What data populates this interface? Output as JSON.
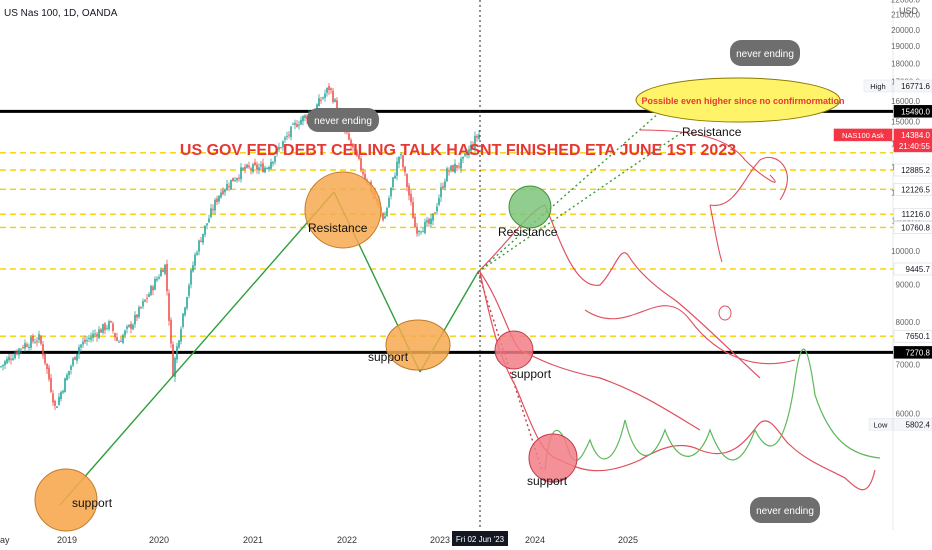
{
  "header": {
    "symbol": "US Nas 100, 1D, OANDA",
    "currency": "USD"
  },
  "chart_data": {
    "type": "line",
    "title": "US GOV FED DEBT CEILING TALK HASNT FINISHED ETA JUNE 1ST 2023",
    "y_axis": {
      "ticks": [
        "22000.0",
        "21000.0",
        "20000.0",
        "19000.0",
        "18000.0",
        "17000.0",
        "16000.0",
        "15000.0",
        "14000.0",
        "13000.0",
        "12000.0",
        "11000.0",
        "10000.0",
        "9000.0",
        "8000.0",
        "7000.0",
        "6000.0"
      ],
      "scale": "log"
    },
    "x_axis": {
      "ticks": [
        "ay",
        "2019",
        "2020",
        "2021",
        "2022",
        "2023",
        "2024",
        "2025"
      ],
      "cursor_label": "Fri 02 Jun '23"
    },
    "price_labels": [
      {
        "label": "High",
        "value": "16771.6",
        "kind": "muted"
      },
      {
        "label": "",
        "value": "15490.0",
        "kind": "black"
      },
      {
        "label": "NAS100 Ask",
        "value": "14384.0",
        "kind": "red"
      },
      {
        "label": "",
        "value": "21:40:55",
        "kind": "red-sub"
      },
      {
        "label": "",
        "value": "12885.2",
        "kind": "plain"
      },
      {
        "label": "",
        "value": "12126.5",
        "kind": "plain"
      },
      {
        "label": "",
        "value": "11216.0",
        "kind": "plain"
      },
      {
        "label": "",
        "value": "10760.8",
        "kind": "plain"
      },
      {
        "label": "",
        "value": "9445.7",
        "kind": "plain"
      },
      {
        "label": "",
        "value": "7650.1",
        "kind": "plain"
      },
      {
        "label": "",
        "value": "7270.8",
        "kind": "black"
      },
      {
        "label": "Low",
        "value": "5802.4",
        "kind": "muted"
      }
    ],
    "levels": {
      "solid": [
        15490.0,
        7270.8
      ],
      "dashed_yellow": [
        13600,
        12885.2,
        12126.5,
        11216.0,
        10760.8,
        9445.7,
        7650.1
      ]
    },
    "price_series": [
      [
        "2018-05",
        6950
      ],
      [
        "2018-08",
        7450
      ],
      [
        "2018-10",
        7600
      ],
      [
        "2018-12",
        6100
      ],
      [
        "2019-03",
        7400
      ],
      [
        "2019-05",
        7700
      ],
      [
        "2019-07",
        7950
      ],
      [
        "2019-08",
        7500
      ],
      [
        "2019-10",
        8000
      ],
      [
        "2019-12",
        8750
      ],
      [
        "2020-02",
        9600
      ],
      [
        "2020-03",
        6800
      ],
      [
        "2020-06",
        10000
      ],
      [
        "2020-09",
        12000
      ],
      [
        "2020-12",
        12900
      ],
      [
        "2021-03",
        13000
      ],
      [
        "2021-07",
        15000
      ],
      [
        "2021-09",
        15500
      ],
      [
        "2021-11",
        16700
      ],
      [
        "2022-01",
        14500
      ],
      [
        "2022-03",
        13000
      ],
      [
        "2022-06",
        11000
      ],
      [
        "2022-08",
        13600
      ],
      [
        "2022-10",
        10700
      ],
      [
        "2022-12",
        10900
      ],
      [
        "2023-02",
        12800
      ],
      [
        "2023-04",
        13200
      ],
      [
        "2023-06",
        14400
      ]
    ],
    "annotations": {
      "ellipse_note": "Possible even higher since no confirmormation",
      "labels": [
        "Resistance",
        "Resistance",
        "Resistance",
        "support",
        "support",
        "support",
        "support"
      ],
      "bubbles": [
        "never ending",
        "never ending",
        "never ending"
      ]
    },
    "colors": {
      "up": "#26a69a",
      "down": "#ef5350",
      "title": "#e53935",
      "trend": "#2e9e3b",
      "projection": "#e0505f",
      "level_dash": "#f5d000",
      "support_fill": "#f6a94f",
      "green_circle": "#7cc47a",
      "pink_circle": "#f27c86"
    }
  }
}
